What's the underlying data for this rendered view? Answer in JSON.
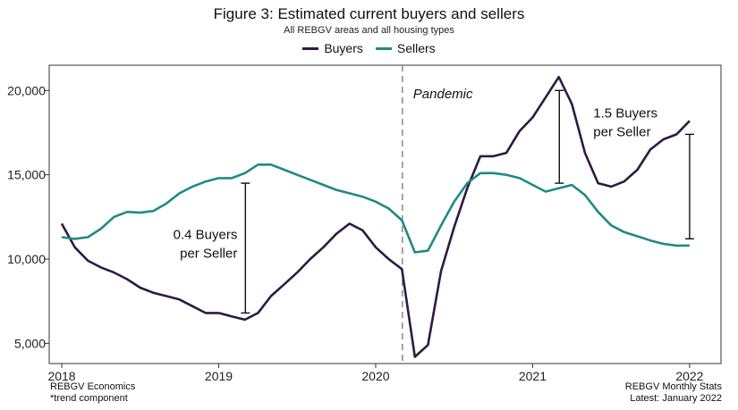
{
  "colors": {
    "buyers": "#2d1a45",
    "sellers": "#1f8a86",
    "pandemic_line": "#999999"
  },
  "chart_data": {
    "type": "line",
    "title": "Figure 3: Estimated current buyers and sellers",
    "subtitle": "All REBGV areas and all housing types",
    "xlabel": "",
    "ylabel": "",
    "x_ticks": [
      "2018",
      "2019",
      "2020",
      "2021",
      "2022"
    ],
    "y_ticks": [
      "5,000",
      "10,000",
      "15,000",
      "20,000"
    ],
    "ylim": [
      3800,
      21500
    ],
    "xlim": [
      2017.92,
      2022.2
    ],
    "grid": false,
    "legend": "top-center",
    "x": [
      2018.0,
      2018.083,
      2018.167,
      2018.25,
      2018.333,
      2018.417,
      2018.5,
      2018.583,
      2018.667,
      2018.75,
      2018.833,
      2018.917,
      2019.0,
      2019.083,
      2019.167,
      2019.25,
      2019.333,
      2019.417,
      2019.5,
      2019.583,
      2019.667,
      2019.75,
      2019.833,
      2019.917,
      2020.0,
      2020.083,
      2020.167,
      2020.25,
      2020.333,
      2020.417,
      2020.5,
      2020.583,
      2020.667,
      2020.75,
      2020.833,
      2020.917,
      2021.0,
      2021.083,
      2021.167,
      2021.25,
      2021.333,
      2021.417,
      2021.5,
      2021.583,
      2021.667,
      2021.75,
      2021.833,
      2021.917,
      2022.0
    ],
    "series": [
      {
        "name": "Buyers",
        "color_key": "buyers",
        "values": [
          12100,
          10700,
          9900,
          9500,
          9200,
          8800,
          8300,
          8000,
          7800,
          7600,
          7200,
          6800,
          6800,
          6600,
          6400,
          6800,
          7800,
          8500,
          9200,
          10000,
          10700,
          11500,
          12100,
          11700,
          10700,
          10000,
          9400,
          4200,
          4900,
          9300,
          11900,
          14200,
          16100,
          16100,
          16300,
          17600,
          18400,
          19600,
          20800,
          19200,
          16300,
          14500,
          14300,
          14600,
          15300,
          16500,
          17100,
          17400,
          18200
        ]
      },
      {
        "name": "Sellers",
        "color_key": "sellers",
        "values": [
          11300,
          11200,
          11300,
          11800,
          12500,
          12800,
          12750,
          12850,
          13300,
          13900,
          14300,
          14600,
          14800,
          14800,
          15100,
          15600,
          15600,
          15300,
          15000,
          14700,
          14400,
          14100,
          13900,
          13700,
          13400,
          13000,
          12300,
          10400,
          10500,
          12000,
          13400,
          14500,
          15100,
          15100,
          15000,
          14800,
          14400,
          14000,
          14200,
          14400,
          13800,
          12800,
          12000,
          11600,
          11350,
          11100,
          10900,
          10800,
          10800
        ]
      }
    ],
    "annotations": [
      {
        "text": "Pandemic",
        "x": 2020.17
      },
      {
        "text_lines": [
          "0.4 Buyers",
          "per Seller"
        ],
        "x": 2019.17,
        "y_low": 6800,
        "y_high": 14500
      },
      {
        "text_lines": [
          "1.5 Buyers",
          "per Seller"
        ],
        "x": 2021.17,
        "y_low": 14500,
        "y_high": 20000
      },
      {
        "x": 2022.0,
        "y_low": 11200,
        "y_high": 17400
      }
    ]
  },
  "footer": {
    "left_line1": "REBGV Economics",
    "left_line2": "*trend component",
    "right_line1": "REBGV Monthly Stats",
    "right_line2": "Latest: January 2022"
  }
}
